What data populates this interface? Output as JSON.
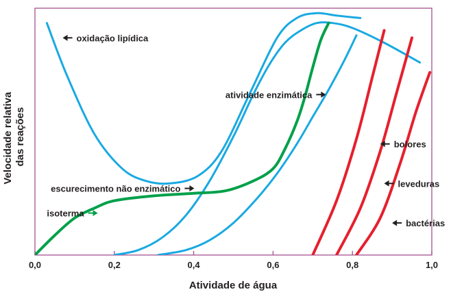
{
  "chart_data": {
    "type": "line",
    "xlabel": "Atividade de água",
    "ylabel": [
      "Velocidade relativa",
      "das reações"
    ],
    "xlim": [
      0,
      1
    ],
    "ylim": [
      0,
      1
    ],
    "x_ticks": [
      "0,0",
      "0,2",
      "0,4",
      "0,6",
      "0,8",
      "1,0"
    ],
    "y_ticks": [],
    "grid": false,
    "legend": "none",
    "colors": {
      "frame": "#a3508f",
      "blue": "#19a9e1",
      "green": "#00a04a",
      "red": "#e5202e",
      "text": "#231f20"
    },
    "series": [
      {
        "key": "lipid",
        "name": "oxidação lipídica",
        "color": "#19a9e1",
        "x": [
          0.03,
          0.08,
          0.15,
          0.22,
          0.28,
          0.34,
          0.41,
          0.47,
          0.54,
          0.61,
          0.66,
          0.71,
          0.76,
          0.82
        ],
        "y": [
          0.94,
          0.73,
          0.49,
          0.35,
          0.3,
          0.29,
          0.32,
          0.42,
          0.65,
          0.88,
          0.96,
          0.98,
          0.97,
          0.96
        ]
      },
      {
        "key": "enzymatic",
        "name": "atividade enzimática",
        "color": "#19a9e1",
        "x": [
          0.2,
          0.26,
          0.32,
          0.38,
          0.44,
          0.5,
          0.55,
          0.59,
          0.63,
          0.67,
          0.71,
          0.75,
          0.8,
          0.88,
          0.97
        ],
        "y": [
          0.0,
          0.02,
          0.07,
          0.16,
          0.3,
          0.48,
          0.65,
          0.77,
          0.86,
          0.91,
          0.94,
          0.94,
          0.92,
          0.86,
          0.78
        ]
      },
      {
        "key": "browning",
        "name": "escurecimento não enzimático",
        "color": "#19a9e1",
        "x": [
          0.31,
          0.38,
          0.44,
          0.5,
          0.56,
          0.61,
          0.66,
          0.7,
          0.74,
          0.78,
          0.81
        ],
        "y": [
          0.0,
          0.02,
          0.06,
          0.13,
          0.23,
          0.33,
          0.45,
          0.56,
          0.67,
          0.79,
          0.89
        ]
      },
      {
        "key": "isotherm",
        "name": "isoterma",
        "color": "#00a04a",
        "x": [
          0.0,
          0.05,
          0.1,
          0.15,
          0.2,
          0.3,
          0.4,
          0.48,
          0.55,
          0.6,
          0.63,
          0.66,
          0.68,
          0.7,
          0.72,
          0.74
        ],
        "y": [
          0.0,
          0.08,
          0.15,
          0.19,
          0.22,
          0.24,
          0.25,
          0.26,
          0.3,
          0.35,
          0.43,
          0.54,
          0.64,
          0.76,
          0.87,
          0.94
        ]
      },
      {
        "key": "bolores",
        "name": "bolores",
        "color": "#e5202e",
        "x": [
          0.7,
          0.76,
          0.81,
          0.85,
          0.88
        ],
        "y": [
          0.0,
          0.22,
          0.47,
          0.72,
          0.91
        ]
      },
      {
        "key": "leveduras",
        "name": "leveduras",
        "color": "#e5202e",
        "x": [
          0.76,
          0.82,
          0.87,
          0.91,
          0.95
        ],
        "y": [
          0.0,
          0.19,
          0.42,
          0.65,
          0.88
        ]
      },
      {
        "key": "bacterias",
        "name": "bactérias",
        "color": "#e5202e",
        "x": [
          0.81,
          0.87,
          0.92,
          0.96,
          0.995
        ],
        "y": [
          0.0,
          0.15,
          0.37,
          0.58,
          0.74
        ]
      }
    ],
    "annotations": [
      {
        "key": "lipid",
        "text": "oxidação lipídica",
        "arrow": "left",
        "x": 0.07,
        "y": 0.88,
        "color": "#231f20"
      },
      {
        "key": "enzymatic",
        "text": "atividade enzimática",
        "arrow": "right",
        "x": 0.48,
        "y": 0.65,
        "color": "#231f20"
      },
      {
        "key": "browning",
        "text": "escurecimento não enzimático",
        "arrow": "right",
        "x": 0.04,
        "y": 0.27,
        "color": "#231f20"
      },
      {
        "key": "isotherm",
        "text": "isoterma",
        "arrow": "right",
        "x": 0.03,
        "y": 0.17,
        "color": "#00a04a"
      },
      {
        "key": "bolores",
        "text": "bolores",
        "arrow": "left",
        "x": 0.87,
        "y": 0.45,
        "color": "#231f20"
      },
      {
        "key": "leveduras",
        "text": "leveduras",
        "arrow": "left",
        "x": 0.88,
        "y": 0.29,
        "color": "#231f20"
      },
      {
        "key": "bacterias",
        "text": "bactérias",
        "arrow": "left",
        "x": 0.9,
        "y": 0.13,
        "color": "#231f20"
      }
    ]
  }
}
